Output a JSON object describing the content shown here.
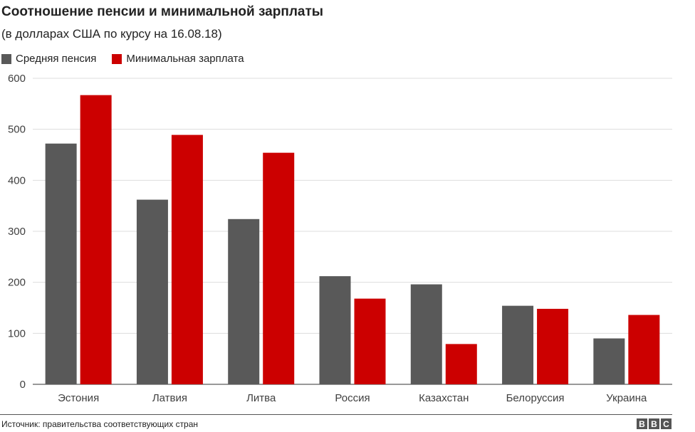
{
  "chart_data": {
    "type": "bar",
    "title": "Соотношение пенсии и минимальной зарплаты",
    "subtitle": "(в долларах США по курсу на 16.08.18)",
    "categories": [
      "Эстония",
      "Латвия",
      "Литва",
      "Россия",
      "Казахстан",
      "Белоруссия",
      "Украина"
    ],
    "series": [
      {
        "name": "Средняя пенсия",
        "color": "#595959",
        "values": [
          472,
          362,
          324,
          212,
          196,
          154,
          90
        ]
      },
      {
        "name": "Минимальная зарплата",
        "color": "#cc0000",
        "values": [
          567,
          489,
          454,
          168,
          79,
          148,
          136
        ]
      }
    ],
    "ylim": [
      0,
      600
    ],
    "yticks": [
      0,
      100,
      200,
      300,
      400,
      500,
      600
    ],
    "grid": true,
    "legend_position": "top-left",
    "xlabel": "",
    "ylabel": ""
  },
  "footer": {
    "source": "Источник: правительства соответствующих стран",
    "logo_letters": [
      "B",
      "B",
      "C"
    ]
  }
}
